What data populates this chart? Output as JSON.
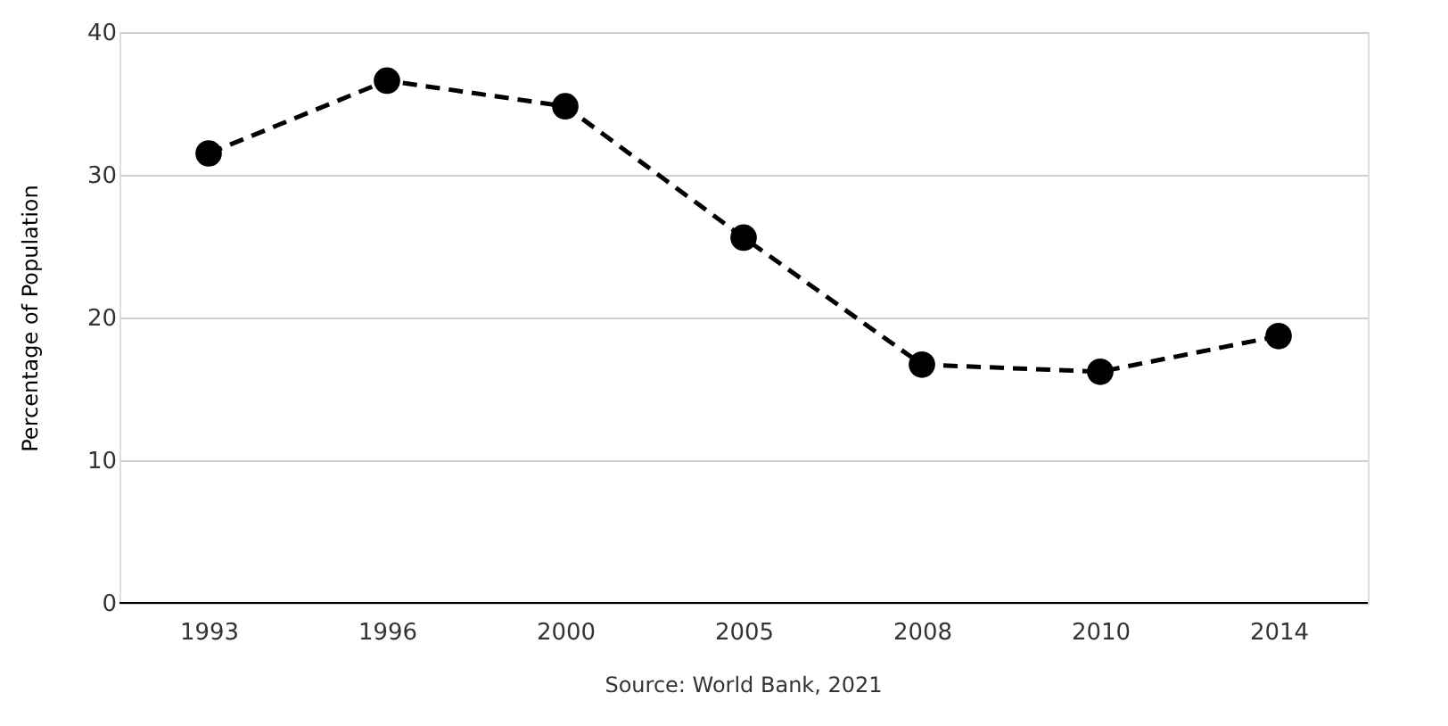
{
  "chart_data": {
    "type": "line",
    "categories": [
      "1993",
      "1996",
      "2000",
      "2005",
      "2008",
      "2010",
      "2014"
    ],
    "series": [
      {
        "color": "#000000",
        "values": [
          31.5,
          36.6,
          34.8,
          25.6,
          16.7,
          16.2,
          18.7
        ]
      }
    ],
    "ylabel": "Percentage of Population",
    "ylim": [
      0,
      40
    ],
    "yticks": [
      0,
      10,
      20,
      30,
      40
    ],
    "grid": "y",
    "marker": "circle",
    "line_style": "dashed",
    "annotations": [
      "Source: World Bank, 2021"
    ]
  }
}
